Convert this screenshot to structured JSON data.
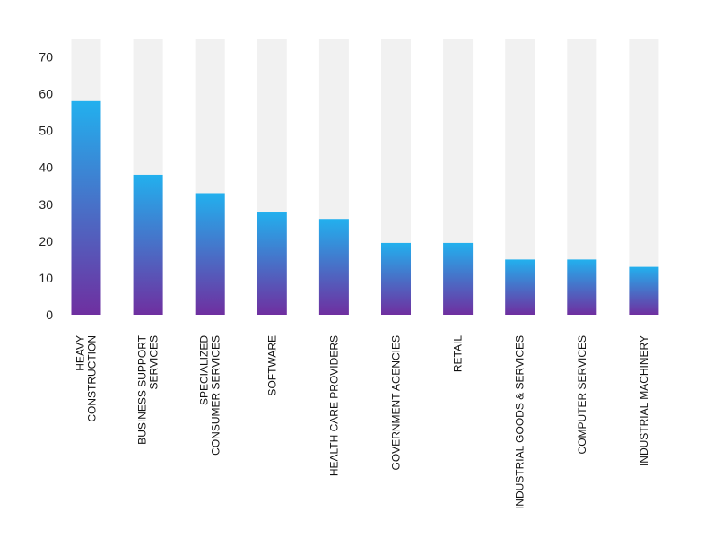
{
  "colors": {
    "track": "#f1f1f1",
    "bar_top": "#22b0ee",
    "bar_bottom": "#6f2fa0",
    "text": "#222222"
  },
  "chart_data": {
    "type": "bar",
    "title": "",
    "xlabel": "",
    "ylabel": "",
    "ylim": [
      0,
      75
    ],
    "yticks": [
      0,
      10,
      20,
      30,
      40,
      50,
      60,
      70
    ],
    "categories": [
      [
        "HEAVY",
        "CONSTRUCTION"
      ],
      [
        "BUSINESS SUPPORT",
        "SERVICES"
      ],
      [
        "SPECIALIZED",
        "CONSUMER SERVICES"
      ],
      [
        "SOFTWARE"
      ],
      [
        "HEALTH CARE PROVIDERS"
      ],
      [
        "GOVERNMENT AGENCIES"
      ],
      [
        "RETAIL"
      ],
      [
        "INDUSTRIAL GOODS & SERVICES"
      ],
      [
        "COMPUTER SERVICES"
      ],
      [
        "INDUSTRIAL MACHINERY"
      ]
    ],
    "values": [
      58,
      38,
      33,
      28,
      26,
      19.5,
      19.5,
      15,
      15,
      13
    ],
    "grid": false,
    "legend": "none"
  }
}
